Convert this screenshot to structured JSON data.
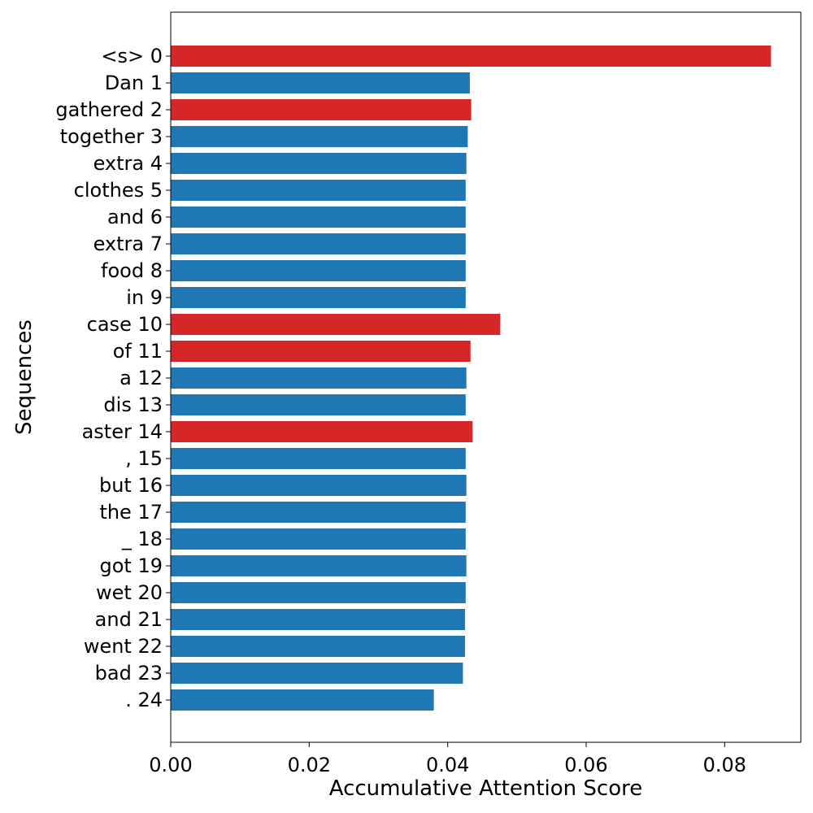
{
  "chart_data": {
    "type": "bar",
    "orientation": "horizontal",
    "title": "",
    "xlabel": "Accumulative Attention Score",
    "ylabel": "Sequences",
    "xlim": [
      0,
      0.091
    ],
    "xticks": [
      "0.00",
      "0.02",
      "0.04",
      "0.06",
      "0.08"
    ],
    "xtick_values": [
      0,
      0.02,
      0.04,
      0.06,
      0.08
    ],
    "grid": false,
    "categories": [
      "<s> 0",
      "Dan 1",
      "gathered 2",
      "together 3",
      "extra 4",
      "clothes 5",
      "and 6",
      "extra 7",
      "food 8",
      "in 9",
      "case 10",
      "of 11",
      "a 12",
      "dis 13",
      "aster 14",
      ", 15",
      "but 16",
      "the 17",
      "_ 18",
      "got 19",
      "wet 20",
      "and 21",
      "went 22",
      "bad 23",
      ". 24"
    ],
    "values": [
      0.0867,
      0.0432,
      0.0434,
      0.0429,
      0.0427,
      0.0426,
      0.0426,
      0.0426,
      0.0426,
      0.0426,
      0.0476,
      0.0433,
      0.0427,
      0.0426,
      0.0436,
      0.0426,
      0.0427,
      0.0426,
      0.0426,
      0.0427,
      0.0426,
      0.0425,
      0.0425,
      0.0422,
      0.038
    ],
    "highlighted": [
      true,
      false,
      true,
      false,
      false,
      false,
      false,
      false,
      false,
      false,
      true,
      true,
      false,
      false,
      true,
      false,
      false,
      false,
      false,
      false,
      false,
      false,
      false,
      false,
      false
    ],
    "colors": {
      "default": "#1f77b4",
      "highlight": "#d62728"
    }
  }
}
